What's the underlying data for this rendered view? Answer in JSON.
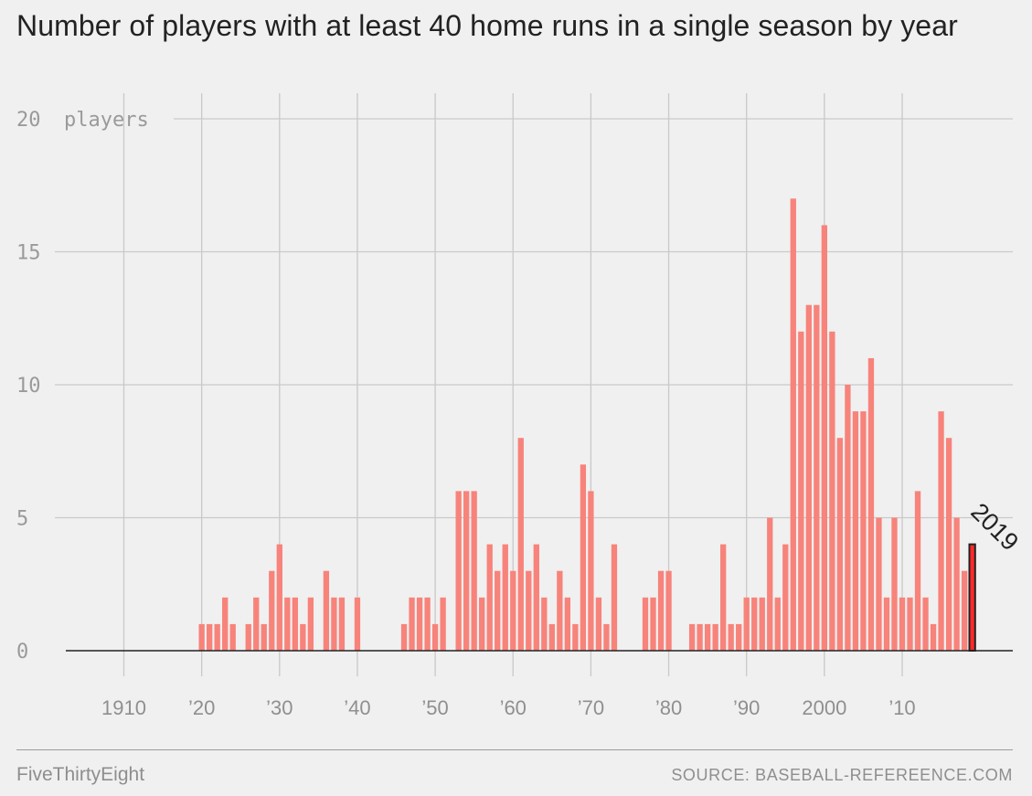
{
  "title": "Number of players with at least 40 home runs in a single season by year",
  "footer": {
    "brand": "FiveThirtyEight",
    "source": "SOURCE: BASEBALL-REFEREENCE.COM"
  },
  "colors": {
    "bar": "#f7837b",
    "highlight": "#ff2a2a",
    "highlight_outline": "#222222",
    "grid": "#c9c9c9",
    "axis": "#222222",
    "background": "#f0f0f0"
  },
  "chart_data": {
    "type": "bar",
    "title": "Number of players with at least 40 home runs in a single season by year",
    "xlabel": "",
    "ylabel": "players",
    "xlim": [
      1901,
      2019
    ],
    "ylim": [
      0,
      20
    ],
    "y_ticks": [
      {
        "value": 0,
        "label": "0"
      },
      {
        "value": 5,
        "label": "5"
      },
      {
        "value": 10,
        "label": "10"
      },
      {
        "value": 15,
        "label": "15"
      },
      {
        "value": 20,
        "label": "20"
      }
    ],
    "y_unit_label": "players",
    "x_ticks": [
      {
        "value": 1910,
        "label": "1910"
      },
      {
        "value": 1920,
        "label": "’20"
      },
      {
        "value": 1930,
        "label": "’30"
      },
      {
        "value": 1940,
        "label": "’40"
      },
      {
        "value": 1950,
        "label": "’50"
      },
      {
        "value": 1960,
        "label": "’60"
      },
      {
        "value": 1970,
        "label": "’70"
      },
      {
        "value": 1980,
        "label": "’80"
      },
      {
        "value": 1990,
        "label": "’90"
      },
      {
        "value": 2000,
        "label": "2000"
      },
      {
        "value": 2010,
        "label": "’10"
      }
    ],
    "grid": true,
    "highlight": {
      "year": 2019,
      "label": "2019"
    },
    "years": [
      1920,
      1921,
      1922,
      1923,
      1924,
      1925,
      1926,
      1927,
      1928,
      1929,
      1930,
      1931,
      1932,
      1933,
      1934,
      1935,
      1936,
      1937,
      1938,
      1939,
      1940,
      1941,
      1942,
      1943,
      1944,
      1945,
      1946,
      1947,
      1948,
      1949,
      1950,
      1951,
      1952,
      1953,
      1954,
      1955,
      1956,
      1957,
      1958,
      1959,
      1960,
      1961,
      1962,
      1963,
      1964,
      1965,
      1966,
      1967,
      1968,
      1969,
      1970,
      1971,
      1972,
      1973,
      1974,
      1975,
      1976,
      1977,
      1978,
      1979,
      1980,
      1981,
      1982,
      1983,
      1984,
      1985,
      1986,
      1987,
      1988,
      1989,
      1990,
      1991,
      1992,
      1993,
      1994,
      1995,
      1996,
      1997,
      1998,
      1999,
      2000,
      2001,
      2002,
      2003,
      2004,
      2005,
      2006,
      2007,
      2008,
      2009,
      2010,
      2011,
      2012,
      2013,
      2014,
      2015,
      2016,
      2017,
      2018,
      2019
    ],
    "values": [
      1,
      1,
      1,
      2,
      1,
      0,
      1,
      2,
      1,
      3,
      4,
      2,
      2,
      1,
      2,
      0,
      3,
      2,
      2,
      0,
      2,
      0,
      0,
      0,
      0,
      0,
      1,
      2,
      2,
      2,
      1,
      2,
      0,
      6,
      6,
      6,
      2,
      4,
      3,
      4,
      3,
      8,
      3,
      4,
      2,
      1,
      3,
      2,
      1,
      7,
      6,
      2,
      1,
      4,
      0,
      0,
      0,
      2,
      2,
      3,
      3,
      0,
      0,
      1,
      1,
      1,
      1,
      4,
      1,
      1,
      2,
      2,
      2,
      5,
      2,
      4,
      17,
      12,
      13,
      13,
      16,
      12,
      8,
      10,
      9,
      9,
      11,
      5,
      2,
      5,
      2,
      2,
      6,
      2,
      1,
      9,
      8,
      5,
      3,
      4
    ]
  }
}
